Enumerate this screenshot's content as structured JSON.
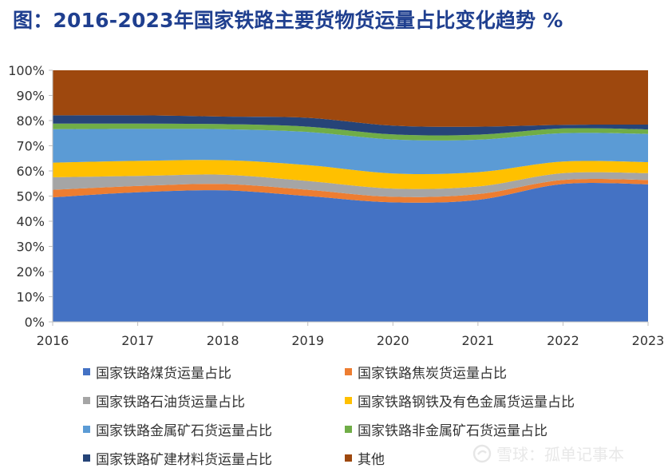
{
  "title": "图：2016-2023年国家铁路主要货物货运量占比变化趋势 %",
  "watermark": "雪球：孤单记事本",
  "chart_data": {
    "type": "area",
    "stacked": true,
    "x": [
      "2016",
      "2017",
      "2018",
      "2019",
      "2020",
      "2021",
      "2022",
      "2023"
    ],
    "ylim": [
      0,
      100
    ],
    "y_ticks": [
      "0%",
      "10%",
      "20%",
      "30%",
      "40%",
      "50%",
      "60%",
      "70%",
      "80%",
      "90%",
      "100%"
    ],
    "legend_position": "bottom",
    "series": [
      {
        "name": "国家铁路煤货运量占比",
        "color": "#4472c4",
        "values": [
          49.5,
          51.5,
          52.3,
          50.0,
          47.5,
          48.5,
          54.8,
          54.7
        ]
      },
      {
        "name": "国家铁路焦炭货运量占比",
        "color": "#ed7d31",
        "values": [
          3.0,
          2.5,
          2.5,
          2.5,
          2.2,
          2.3,
          1.6,
          1.7
        ]
      },
      {
        "name": "国家铁路石油货运量占比",
        "color": "#a5a5a5",
        "values": [
          5.0,
          4.0,
          3.7,
          3.5,
          3.3,
          3.0,
          2.7,
          2.7
        ]
      },
      {
        "name": "国家铁路钢铁及有色金属货运量占比",
        "color": "#ffc000",
        "values": [
          5.8,
          6.0,
          5.8,
          6.3,
          6.0,
          5.7,
          4.6,
          4.4
        ]
      },
      {
        "name": "国家铁路金属矿石货运量占比",
        "color": "#5b9bd5",
        "values": [
          13.3,
          12.7,
          12.3,
          13.2,
          13.5,
          12.9,
          11.3,
          11.2
        ]
      },
      {
        "name": "国家铁路非金属矿石货运量占比",
        "color": "#70ad47",
        "values": [
          2.2,
          2.1,
          2.0,
          2.1,
          2.0,
          2.0,
          1.9,
          1.8
        ]
      },
      {
        "name": "国家铁路矿建材料货运量占比",
        "color": "#264478",
        "values": [
          3.3,
          3.3,
          3.0,
          3.5,
          3.5,
          3.2,
          1.4,
          1.9
        ]
      },
      {
        "name": "其他",
        "color": "#9e480e",
        "values": [
          17.9,
          17.9,
          18.4,
          18.9,
          22.0,
          22.4,
          21.7,
          21.6
        ]
      }
    ]
  }
}
